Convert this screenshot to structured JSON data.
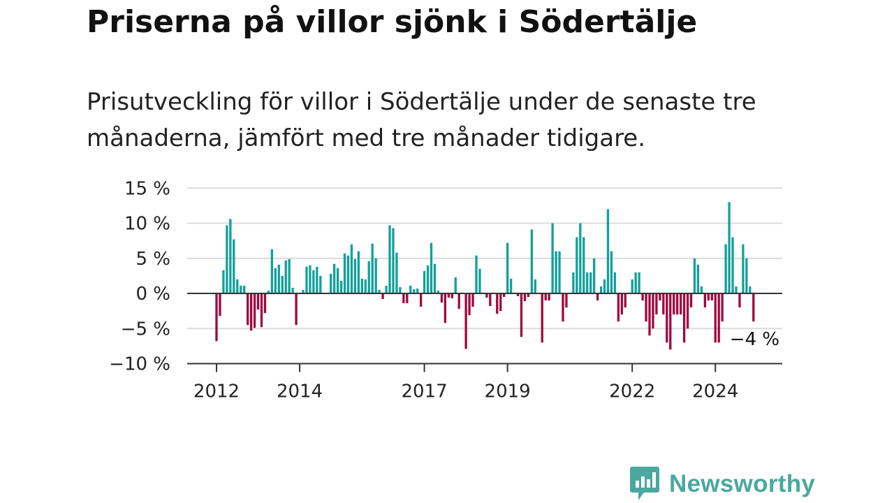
{
  "title": "Priserna på villor sjönk i Södertälje",
  "subtitle": "Prisutveckling för villor i Södertälje under de senaste tre månaderna, jämfört med tre månader tidigare.",
  "brand": {
    "name": "Newsworthy",
    "icon": "bar-chart-speech-bubble-icon"
  },
  "colors": {
    "positive": "#12a09a",
    "negative": "#a0063f",
    "grid": "#dcdcdc",
    "axis": "#333333"
  },
  "chart_data": {
    "type": "bar",
    "x_start": "2012-01",
    "x_unit": "month",
    "ylim": [
      -10,
      15
    ],
    "y_ticks": [
      15,
      10,
      5,
      0,
      -5,
      -10
    ],
    "y_tick_labels": [
      "15 %",
      "10 %",
      "5 %",
      "0 %",
      "−5 %",
      "−10 %"
    ],
    "x_tick_labels": [
      {
        "label": "2012",
        "month_index": 0
      },
      {
        "label": "2014",
        "month_index": 24
      },
      {
        "label": "2017",
        "month_index": 60
      },
      {
        "label": "2019",
        "month_index": 84
      },
      {
        "label": "2022",
        "month_index": 120
      },
      {
        "label": "2024",
        "month_index": 144
      }
    ],
    "last_value_label": "−4 %",
    "grid": true,
    "values": [
      -6.8,
      -3.2,
      3.3,
      9.7,
      10.6,
      7.7,
      2.0,
      1.1,
      1.1,
      -4.5,
      -5.3,
      -4.9,
      -2.3,
      -4.8,
      -2.8,
      0.4,
      6.3,
      3.6,
      4.1,
      2.5,
      4.7,
      4.9,
      0.8,
      -4.5,
      0.0,
      0.5,
      3.8,
      4.0,
      3.3,
      3.8,
      2.5,
      0.0,
      0.0,
      2.8,
      4.2,
      3.6,
      1.8,
      5.7,
      5.4,
      7.0,
      4.9,
      6.0,
      2.1,
      2.0,
      4.6,
      7.1,
      5.0,
      0.5,
      -0.8,
      1.1,
      9.7,
      9.3,
      5.8,
      0.9,
      -1.4,
      -1.4,
      1.1,
      0.6,
      0.7,
      -1.9,
      3.2,
      4.0,
      7.2,
      4.2,
      0.4,
      -1.3,
      -4.2,
      -0.6,
      -0.7,
      2.3,
      -2.2,
      0.0,
      -7.9,
      -3.1,
      -1.9,
      5.4,
      3.5,
      0.0,
      -0.6,
      -1.8,
      0.0,
      -2.9,
      -2.5,
      -0.5,
      7.2,
      2.1,
      0.0,
      -0.4,
      -6.2,
      -1.1,
      -0.5,
      9.1,
      2.0,
      0.0,
      -7.0,
      -1.0,
      -1.0,
      10.0,
      6.0,
      6.0,
      -4.0,
      -2.0,
      0.0,
      3.0,
      8.0,
      10.0,
      8.0,
      3.0,
      3.0,
      5.0,
      -1.0,
      1.0,
      2.0,
      12.0,
      6.0,
      3.0,
      -4.0,
      -3.0,
      -2.0,
      0.0,
      2.0,
      3.0,
      3.0,
      -1.0,
      -4.0,
      -6.0,
      -5.0,
      -3.0,
      -1.0,
      -3.0,
      -7.0,
      -8.0,
      -3.0,
      -3.0,
      -3.0,
      -7.0,
      -5.0,
      -2.0,
      5.0,
      4.1,
      1.0,
      -2.0,
      -1.0,
      -1.0,
      -7.0,
      -7.0,
      -4.0,
      7.0,
      13.0,
      8.0,
      1.0,
      -2.0,
      7.0,
      5.0,
      1.0,
      -4.0
    ]
  }
}
